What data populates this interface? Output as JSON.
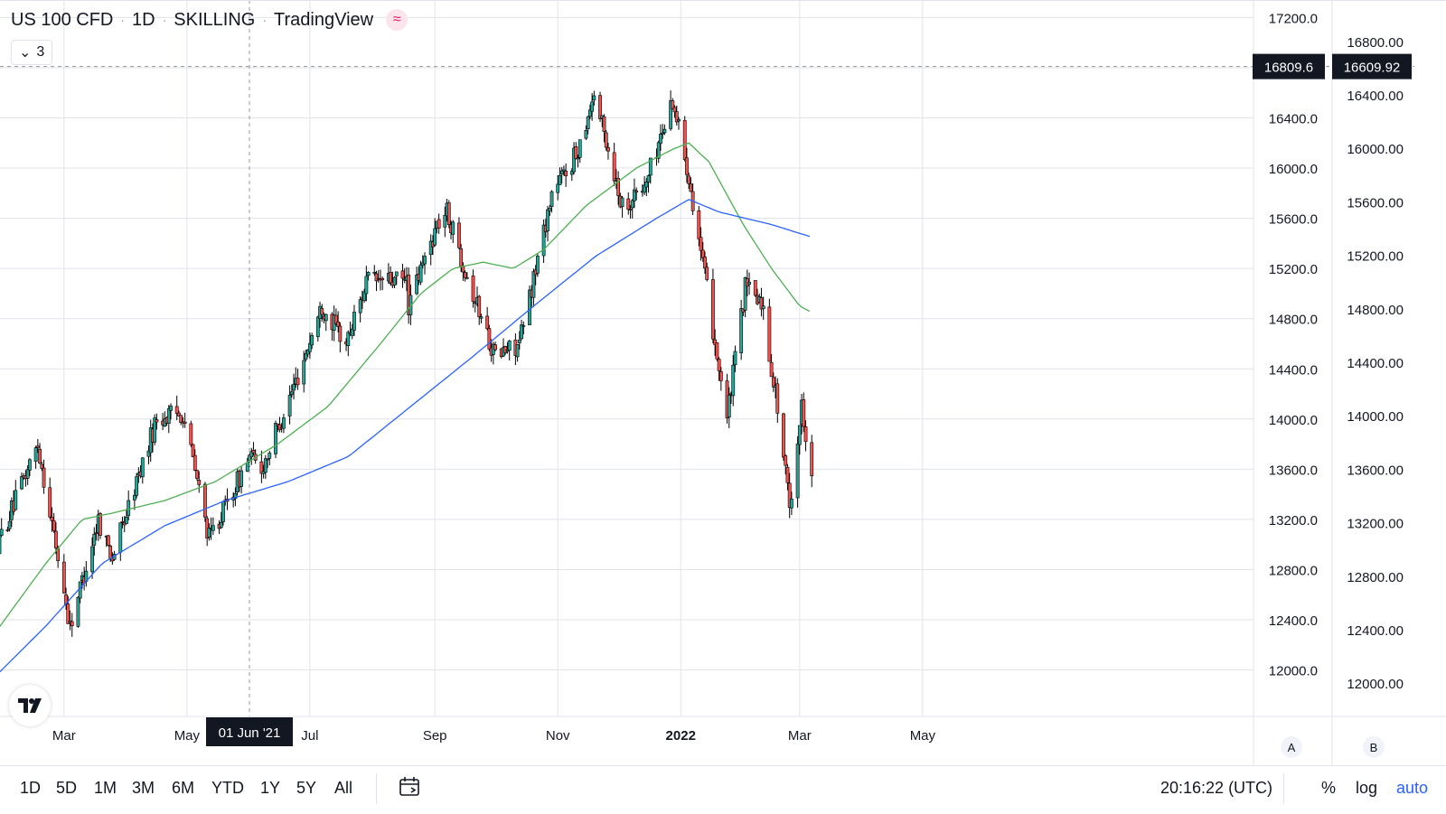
{
  "header": {
    "symbol": "US 100 CFD",
    "interval": "1D",
    "exchange": "SKILLING",
    "source": "TradingView",
    "wave_icon": "≈",
    "indicators_collapse_count": "3"
  },
  "colors": {
    "up": "#26a69a",
    "down": "#ef5350",
    "candle_outline": "#000000",
    "ma_fast": "#4caf50",
    "ma_slow": "#2962ff",
    "grid": "#e0e3eb",
    "label_bg": "#131722"
  },
  "axes": {
    "left_scale_ticks": [
      "17200.0",
      "16800.0",
      "16400.0",
      "16000.0",
      "15600.0",
      "15200.0",
      "14800.0",
      "14400.0",
      "14000.0",
      "13600.0",
      "13200.0",
      "12800.0",
      "12400.0",
      "12000.0"
    ],
    "right_scale_ticks": [
      "16800.00",
      "16400.00",
      "16000.00",
      "15600.00",
      "15200.00",
      "14800.00",
      "14400.00",
      "14000.00",
      "13600.00",
      "13200.00",
      "12800.00",
      "12400.00",
      "12000.00"
    ],
    "left_scale_button": "A",
    "right_scale_button": "B",
    "time_ticks": [
      "Mar",
      "May",
      "Jul",
      "Sep",
      "Nov",
      "2022",
      "Mar",
      "May"
    ],
    "crosshair_time_label": "01 Jun '21",
    "crosshair_left_price_label": "16809.6",
    "crosshair_right_price_label": "16609.92"
  },
  "chart_data": {
    "type": "candlestick",
    "title": "US 100 CFD · 1D · SKILLING",
    "price_range": [
      11800,
      17350
    ],
    "time_range": [
      "2021-01-26",
      "2022-06-06"
    ],
    "series": [
      {
        "name": "price",
        "points": [
          [
            "2021-01-26",
            12950
          ],
          [
            "2021-02-16",
            13800
          ],
          [
            "2021-03-04",
            12350
          ],
          [
            "2021-03-18",
            13200
          ],
          [
            "2021-03-25",
            12900
          ],
          [
            "2021-04-16",
            14000
          ],
          [
            "2021-04-29",
            14050
          ],
          [
            "2021-05-12",
            13050
          ],
          [
            "2021-05-20",
            13300
          ],
          [
            "2021-06-01",
            13700
          ],
          [
            "2021-06-07",
            13600
          ],
          [
            "2021-06-24",
            14300
          ],
          [
            "2021-07-07",
            14900
          ],
          [
            "2021-07-19",
            14600
          ],
          [
            "2021-07-29",
            15100
          ],
          [
            "2021-08-18",
            15100
          ],
          [
            "2021-08-19",
            14900
          ],
          [
            "2021-09-02",
            15550
          ],
          [
            "2021-09-07",
            15650
          ],
          [
            "2021-09-20",
            15000
          ],
          [
            "2021-10-01",
            14500
          ],
          [
            "2021-10-13",
            14600
          ],
          [
            "2021-10-29",
            15800
          ],
          [
            "2021-11-10",
            16100
          ],
          [
            "2021-11-19",
            16600
          ],
          [
            "2021-12-03",
            15700
          ],
          [
            "2021-12-14",
            15850
          ],
          [
            "2021-12-28",
            16550
          ],
          [
            "2022-01-05",
            15950
          ],
          [
            "2022-01-24",
            14000
          ],
          [
            "2022-02-02",
            15050
          ],
          [
            "2022-02-10",
            14950
          ],
          [
            "2022-02-18",
            14100
          ],
          [
            "2022-02-24",
            13300
          ],
          [
            "2022-03-02",
            14100
          ],
          [
            "2022-03-07",
            13600
          ]
        ]
      },
      {
        "name": "ma_fast",
        "points": [
          [
            "2021-01-26",
            12300
          ],
          [
            "2021-02-20",
            12850
          ],
          [
            "2021-03-10",
            13200
          ],
          [
            "2021-03-25",
            13250
          ],
          [
            "2021-04-20",
            13350
          ],
          [
            "2021-05-15",
            13500
          ],
          [
            "2021-06-15",
            13800
          ],
          [
            "2021-07-10",
            14100
          ],
          [
            "2021-08-05",
            14600
          ],
          [
            "2021-08-25",
            15000
          ],
          [
            "2021-09-10",
            15200
          ],
          [
            "2021-09-25",
            15250
          ],
          [
            "2021-10-10",
            15200
          ],
          [
            "2021-10-25",
            15350
          ],
          [
            "2021-11-15",
            15700
          ],
          [
            "2021-12-10",
            16000
          ],
          [
            "2021-12-28",
            16150
          ],
          [
            "2022-01-05",
            16200
          ],
          [
            "2022-01-15",
            16050
          ],
          [
            "2022-02-01",
            15550
          ],
          [
            "2022-02-15",
            15200
          ],
          [
            "2022-03-01",
            14900
          ],
          [
            "2022-03-07",
            14850
          ]
        ]
      },
      {
        "name": "ma_slow",
        "points": [
          [
            "2021-01-26",
            11950
          ],
          [
            "2021-02-20",
            12350
          ],
          [
            "2021-03-20",
            12850
          ],
          [
            "2021-04-20",
            13150
          ],
          [
            "2021-05-20",
            13350
          ],
          [
            "2021-06-20",
            13500
          ],
          [
            "2021-07-20",
            13700
          ],
          [
            "2021-08-20",
            14100
          ],
          [
            "2021-09-20",
            14500
          ],
          [
            "2021-10-20",
            14900
          ],
          [
            "2021-11-20",
            15300
          ],
          [
            "2021-12-20",
            15600
          ],
          [
            "2022-01-05",
            15750
          ],
          [
            "2022-01-20",
            15650
          ],
          [
            "2022-02-15",
            15550
          ],
          [
            "2022-03-07",
            15450
          ]
        ]
      }
    ]
  },
  "bottom_toolbar": {
    "ranges": [
      "1D",
      "5D",
      "1M",
      "3M",
      "6M",
      "YTD",
      "1Y",
      "5Y",
      "All"
    ],
    "clock": "20:16:22 (UTC)",
    "percent_label": "%",
    "log_label": "log",
    "auto_label": "auto"
  }
}
